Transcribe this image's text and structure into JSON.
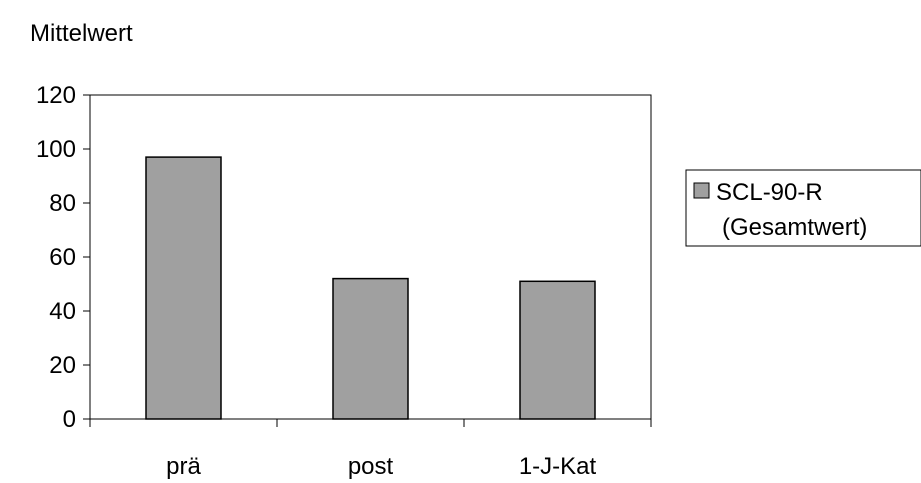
{
  "chart_data": {
    "type": "bar",
    "ylabel": "Mittelwert",
    "xlabel": "",
    "categories": [
      "prä",
      "post",
      "1-J-Kat"
    ],
    "series": [
      {
        "name": "SCL-90-R (Gesamtwert)",
        "legend_lines": [
          "SCL-90-R",
          "(Gesamtwert)"
        ],
        "values": [
          97,
          52,
          51
        ]
      }
    ],
    "ylim": [
      0,
      120
    ],
    "yticks": [
      0,
      20,
      40,
      60,
      80,
      100,
      120
    ],
    "ytick_labels": [
      "0",
      "20",
      "40",
      "60",
      "80",
      "100",
      "120"
    ],
    "grid": false,
    "legend_position": "right",
    "colors": {
      "bar_fill": "#a0a0a0",
      "bar_stroke": "#000000",
      "axis": "#000000"
    }
  }
}
